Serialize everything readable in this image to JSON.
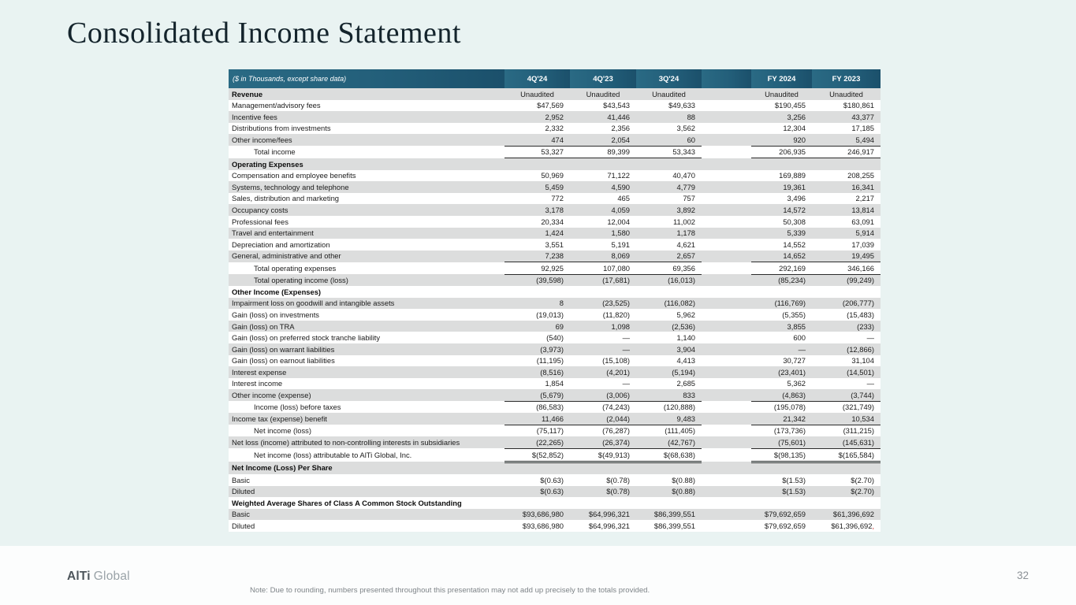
{
  "slide": {
    "title": "Consolidated Income Statement",
    "page_number": "32",
    "footer_note": "Note: Due to rounding, numbers presented throughout this presentation may not add up precisely to the totals provided.",
    "logo_bold": "AlTi",
    "logo_light": "Global"
  },
  "colors": {
    "slide_background": "#e9f3f2",
    "table_header_teal": "#235f7a",
    "row_stripe_gray": "#dcdddd",
    "footer_background": "#fcfdfd",
    "artifact_red": "#d21a1a"
  },
  "table": {
    "caption": "($ in Thousands, except share data)",
    "columns": [
      "4Q'24",
      "4Q'23",
      "3Q'24",
      "FY 2024",
      "FY 2023"
    ],
    "red_mark": ",",
    "rows": [
      {
        "label": "Revenue",
        "type": "section",
        "values": [
          "Unaudited",
          "Unaudited",
          "Unaudited",
          "Unaudited",
          "Unaudited"
        ]
      },
      {
        "label": "Management/advisory fees",
        "values": [
          "$47,569",
          "$43,543",
          "$49,633",
          "$190,455",
          "$180,861"
        ]
      },
      {
        "label": "Incentive fees",
        "values": [
          "2,952",
          "41,446",
          "88",
          "3,256",
          "43,377"
        ]
      },
      {
        "label": "Distributions from investments",
        "values": [
          "2,332",
          "2,356",
          "3,562",
          "12,304",
          "17,185"
        ]
      },
      {
        "label": "Other income/fees",
        "values": [
          "474",
          "2,054",
          "60",
          "920",
          "5,494"
        ],
        "underline": true
      },
      {
        "label": "Total income",
        "type": "total",
        "values": [
          "53,327",
          "89,399",
          "53,343",
          "206,935",
          "246,917"
        ],
        "underline": true
      },
      {
        "label": "Operating Expenses",
        "type": "section",
        "values": [
          "",
          "",
          "",
          "",
          ""
        ]
      },
      {
        "label": "Compensation and employee benefits",
        "values": [
          "50,969",
          "71,122",
          "40,470",
          "169,889",
          "208,255"
        ]
      },
      {
        "label": "Systems, technology and telephone",
        "values": [
          "5,459",
          "4,590",
          "4,779",
          "19,361",
          "16,341"
        ]
      },
      {
        "label": "Sales, distribution and marketing",
        "values": [
          "772",
          "465",
          "757",
          "3,496",
          "2,217"
        ]
      },
      {
        "label": "Occupancy costs",
        "values": [
          "3,178",
          "4,059",
          "3,892",
          "14,572",
          "13,814"
        ]
      },
      {
        "label": "Professional fees",
        "values": [
          "20,334",
          "12,004",
          "11,002",
          "50,308",
          "63,091"
        ]
      },
      {
        "label": "Travel and entertainment",
        "values": [
          "1,424",
          "1,580",
          "1,178",
          "5,339",
          "5,914"
        ]
      },
      {
        "label": "Depreciation and amortization",
        "values": [
          "3,551",
          "5,191",
          "4,621",
          "14,552",
          "17,039"
        ]
      },
      {
        "label": "General, administrative and other",
        "values": [
          "7,238",
          "8,069",
          "2,657",
          "14,652",
          "19,495"
        ],
        "underline": true
      },
      {
        "label": "Total operating expenses",
        "type": "total",
        "values": [
          "92,925",
          "107,080",
          "69,356",
          "292,169",
          "346,166"
        ],
        "underline": true
      },
      {
        "label": "Total operating income (loss)",
        "type": "total",
        "values": [
          "(39,598)",
          "(17,681)",
          "(16,013)",
          "(85,234)",
          "(99,249)"
        ]
      },
      {
        "label": "Other Income (Expenses)",
        "type": "section",
        "values": [
          "",
          "",
          "",
          "",
          ""
        ]
      },
      {
        "label": "Impairment loss on goodwill and intangible assets",
        "values": [
          "8",
          "(23,525)",
          "(116,082)",
          "(116,769)",
          "(206,777)"
        ]
      },
      {
        "label": "Gain (loss) on investments",
        "values": [
          "(19,013)",
          "(11,820)",
          "5,962",
          "(5,355)",
          "(15,483)"
        ]
      },
      {
        "label": "Gain (loss) on TRA",
        "values": [
          "69",
          "1,098",
          "(2,536)",
          "3,855",
          "(233)"
        ]
      },
      {
        "label": "Gain (loss) on preferred stock tranche liability",
        "values": [
          "(540)",
          "—",
          "1,140",
          "600",
          "—"
        ]
      },
      {
        "label": "Gain (loss) on warrant liabilities",
        "values": [
          "(3,973)",
          "—",
          "3,904",
          "—",
          "(12,866)"
        ]
      },
      {
        "label": "Gain (loss) on earnout liabilities",
        "values": [
          "(11,195)",
          "(15,108)",
          "4,413",
          "30,727",
          "31,104"
        ]
      },
      {
        "label": "Interest expense",
        "values": [
          "(8,516)",
          "(4,201)",
          "(5,194)",
          "(23,401)",
          "(14,501)"
        ]
      },
      {
        "label": "Interest income",
        "values": [
          "1,854",
          "—",
          "2,685",
          "5,362",
          "—"
        ]
      },
      {
        "label": "Other income (expense)",
        "values": [
          "(5,679)",
          "(3,006)",
          "833",
          "(4,863)",
          "(3,744)"
        ],
        "underline": true
      },
      {
        "label": "Income (loss) before taxes",
        "type": "total",
        "values": [
          "(86,583)",
          "(74,243)",
          "(120,888)",
          "(195,078)",
          "(321,749)"
        ]
      },
      {
        "label": "Income tax (expense) benefit",
        "values": [
          "11,466",
          "(2,044)",
          "9,483",
          "21,342",
          "10,534"
        ],
        "underline": true
      },
      {
        "label": "Net income (loss)",
        "type": "total",
        "values": [
          "(75,117)",
          "(76,287)",
          "(111,405)",
          "(173,736)",
          "(311,215)"
        ]
      },
      {
        "label": "Net loss (income) attributed to non-controlling interests in subsidiaries",
        "values": [
          "(22,265)",
          "(26,374)",
          "(42,767)",
          "(75,601)",
          "(145,631)"
        ],
        "underline": true
      },
      {
        "label": "Net income (loss) attributable to AlTi Global, Inc.",
        "type": "total",
        "values": [
          "$(52,852)",
          "$(49,913)",
          "$(68,638)",
          "$(98,135)",
          "$(165,584)"
        ],
        "underline": "double"
      },
      {
        "label": "Net Income (Loss) Per Share",
        "type": "section",
        "values": [
          "",
          "",
          "",
          "",
          ""
        ]
      },
      {
        "label": "Basic",
        "values": [
          "$(0.63)",
          "$(0.78)",
          "$(0.88)",
          "$(1.53)",
          "$(2.70)"
        ]
      },
      {
        "label": "Diluted",
        "values": [
          "$(0.63)",
          "$(0.78)",
          "$(0.88)",
          "$(1.53)",
          "$(2.70)"
        ]
      },
      {
        "label": "Weighted Average Shares of Class A Common Stock Outstanding",
        "type": "section",
        "values": [
          "",
          "",
          "",
          "",
          ""
        ]
      },
      {
        "label": "Basic",
        "values": [
          "$93,686,980",
          "$64,996,321",
          "$86,399,551",
          "$79,692,659",
          "$61,396,692"
        ]
      },
      {
        "label": "Diluted",
        "values": [
          "$93,686,980",
          "$64,996,321",
          "$86,399,551",
          "$79,692,659",
          "$61,396,692"
        ]
      }
    ]
  }
}
